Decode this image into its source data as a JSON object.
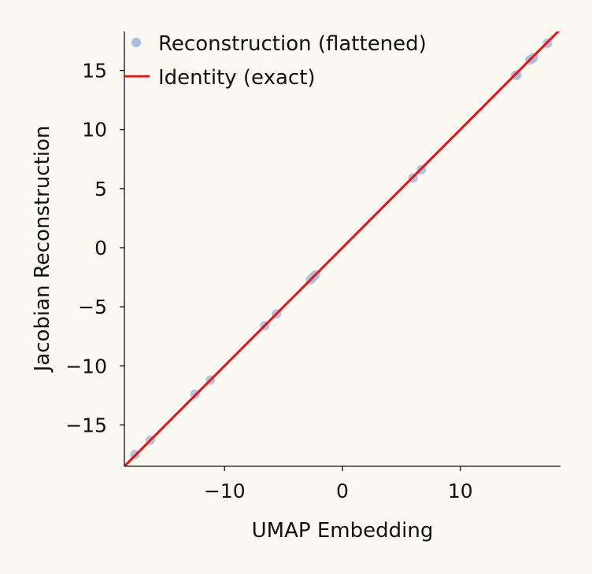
{
  "chart_data": {
    "type": "scatter",
    "title": "",
    "xlabel": "UMAP Embedding",
    "ylabel": "Jacobian Reconstruction",
    "xlim": [
      -18.5,
      18.5
    ],
    "ylim": [
      -18.5,
      18.3
    ],
    "xticks": [
      -10,
      0,
      10
    ],
    "yticks": [
      -15,
      -10,
      -5,
      0,
      5,
      10,
      15
    ],
    "xtick_labels": [
      "−10",
      "0",
      "10"
    ],
    "ytick_labels": [
      "−15",
      "−10",
      "−5",
      "0",
      "5",
      "10",
      "15"
    ],
    "grid": false,
    "legend_position": "top-left",
    "series": [
      {
        "name": "Reconstruction (flattened)",
        "kind": "scatter",
        "color": "#a9bedf",
        "points": [
          [
            -17.6,
            -17.5
          ],
          [
            -16.3,
            -16.3
          ],
          [
            -12.5,
            -12.4
          ],
          [
            -11.2,
            -11.2
          ],
          [
            -6.6,
            -6.6
          ],
          [
            -5.6,
            -5.6
          ],
          [
            -2.7,
            -2.7
          ],
          [
            -2.5,
            -2.5
          ],
          [
            -2.3,
            -2.3
          ],
          [
            6.0,
            5.9
          ],
          [
            6.7,
            6.6
          ],
          [
            14.7,
            14.6
          ],
          [
            14.8,
            14.6
          ],
          [
            15.9,
            15.9
          ],
          [
            16.1,
            16.0
          ],
          [
            16.2,
            16.1
          ],
          [
            17.4,
            17.3
          ]
        ]
      },
      {
        "name": "Identity (exact)",
        "kind": "line",
        "color": "#ee1111",
        "x": [
          -18.5,
          18.5
        ],
        "y": [
          -18.5,
          18.5
        ]
      }
    ]
  }
}
